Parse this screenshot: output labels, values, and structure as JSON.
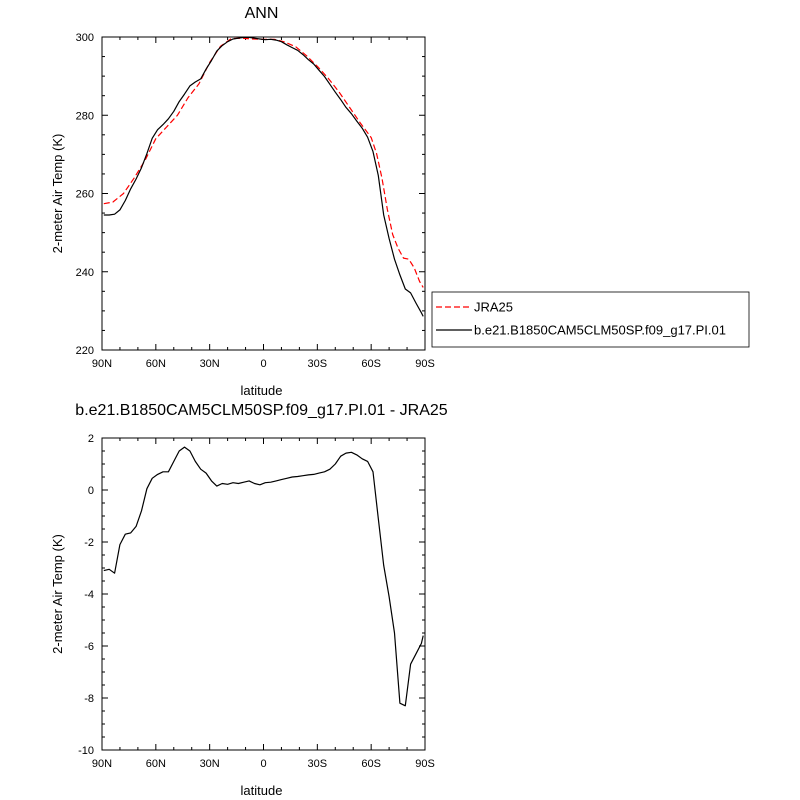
{
  "chart_data": [
    {
      "type": "line",
      "title": "ANN",
      "xlabel": "latitude",
      "ylabel": "2-meter Air Temp (K)",
      "x_tick_labels": [
        "90N",
        "60N",
        "30N",
        "0",
        "30S",
        "60S",
        "90S"
      ],
      "x_tick_values": [
        90,
        60,
        30,
        0,
        -30,
        -60,
        -90
      ],
      "xlim": [
        90,
        -90
      ],
      "ylim": [
        220,
        300
      ],
      "y_ticks": [
        220,
        240,
        260,
        280,
        300
      ],
      "grid": false,
      "legend_position": "outside-right",
      "series": [
        {
          "name": "JRA25",
          "color": "#ff0000",
          "dash": "dashed",
          "x": [
            89,
            84,
            78,
            72,
            66,
            60,
            54,
            48,
            42,
            36,
            30,
            24,
            18,
            12,
            6,
            0,
            -6,
            -12,
            -18,
            -24,
            -30,
            -36,
            -42,
            -48,
            -54,
            -60,
            -63,
            -66,
            -69,
            -72,
            -75,
            -78,
            -81,
            -84,
            -87,
            -89
          ],
          "y": [
            257.4,
            257.8,
            260,
            264,
            268.5,
            274,
            277,
            280,
            284.5,
            288,
            293.5,
            297.6,
            299.6,
            299.7,
            299.5,
            299.4,
            299.4,
            298.7,
            297.5,
            295.2,
            292.5,
            289.5,
            286,
            282,
            278,
            274.3,
            270.2,
            264,
            256,
            249.5,
            246,
            243.5,
            243.2,
            241,
            237.5,
            236
          ]
        },
        {
          "name": "b.e21.B1850CAM5CLM50SP.f09_g17.PI.01",
          "color": "#000000",
          "dash": "solid",
          "x": [
            89,
            86,
            83,
            80,
            77,
            74,
            71,
            68,
            65,
            62,
            59,
            56,
            53,
            50,
            47,
            44,
            41,
            38,
            35,
            32,
            29,
            26,
            23,
            20,
            17,
            14,
            11,
            8,
            5,
            2,
            -1,
            -4,
            -7,
            -10,
            -13,
            -16,
            -19,
            -22,
            -25,
            -28,
            -31,
            -34,
            -37,
            -40,
            -43,
            -46,
            -49,
            -52,
            -55,
            -58,
            -61,
            -64,
            -67,
            -70,
            -73,
            -76,
            -79,
            -82,
            -85,
            -88,
            -89
          ],
          "y": [
            254.5,
            254.5,
            254.7,
            255.8,
            258.2,
            261.2,
            263.7,
            266.6,
            270.2,
            274.1,
            276.3,
            277.6,
            279.1,
            281,
            283.5,
            285.4,
            287.5,
            288.5,
            289.3,
            291.8,
            294,
            296.4,
            297.8,
            298.8,
            299.5,
            299.7,
            299.9,
            299.9,
            299.7,
            299.5,
            299.3,
            299.4,
            299.2,
            298.8,
            298,
            297.3,
            296.6,
            295.5,
            294.2,
            293.1,
            291.5,
            289.9,
            287.9,
            285.9,
            284,
            282,
            280.4,
            278.5,
            276.7,
            274.4,
            270.7,
            264.6,
            254.5,
            248.5,
            243.2,
            239.2,
            235.6,
            234.6,
            232,
            229.5,
            228.6
          ]
        }
      ]
    },
    {
      "type": "line",
      "title": "b.e21.B1850CAM5CLM50SP.f09_g17.PI.01 - JRA25",
      "xlabel": "latitude",
      "ylabel": "2-meter Air Temp (K)",
      "x_tick_labels": [
        "90N",
        "60N",
        "30N",
        "0",
        "30S",
        "60S",
        "90S"
      ],
      "x_tick_values": [
        90,
        60,
        30,
        0,
        -30,
        -60,
        -90
      ],
      "xlim": [
        90,
        -90
      ],
      "ylim": [
        -10,
        2
      ],
      "y_ticks": [
        -10,
        -8,
        -6,
        -4,
        -2,
        0,
        2
      ],
      "grid": false,
      "series": [
        {
          "color": "#000000",
          "dash": "solid",
          "x": [
            89,
            86,
            83,
            80,
            77,
            74,
            71,
            68,
            65,
            62,
            59,
            56,
            53,
            50,
            47,
            44,
            41,
            38,
            35,
            32,
            29,
            26,
            23,
            20,
            17,
            14,
            11,
            8,
            5,
            2,
            -1,
            -4,
            -7,
            -10,
            -13,
            -16,
            -19,
            -22,
            -25,
            -28,
            -31,
            -34,
            -37,
            -40,
            -43,
            -46,
            -49,
            -52,
            -55,
            -58,
            -61,
            -64,
            -67,
            -70,
            -73,
            -76,
            -79,
            -82,
            -85,
            -88,
            -89
          ],
          "y": [
            -3.1,
            -3.05,
            -3.2,
            -2.1,
            -1.7,
            -1.65,
            -1.4,
            -0.8,
            0.05,
            0.45,
            0.6,
            0.7,
            0.7,
            1.1,
            1.5,
            1.65,
            1.5,
            1.1,
            0.8,
            0.65,
            0.35,
            0.15,
            0.25,
            0.22,
            0.28,
            0.25,
            0.3,
            0.35,
            0.25,
            0.2,
            0.28,
            0.3,
            0.35,
            0.4,
            0.45,
            0.5,
            0.52,
            0.55,
            0.58,
            0.6,
            0.65,
            0.7,
            0.8,
            1.0,
            1.3,
            1.42,
            1.45,
            1.35,
            1.2,
            1.1,
            0.7,
            -1.1,
            -2.9,
            -4.1,
            -5.5,
            -8.2,
            -8.3,
            -6.7,
            -6.3,
            -5.9,
            -5.6
          ]
        }
      ]
    }
  ]
}
